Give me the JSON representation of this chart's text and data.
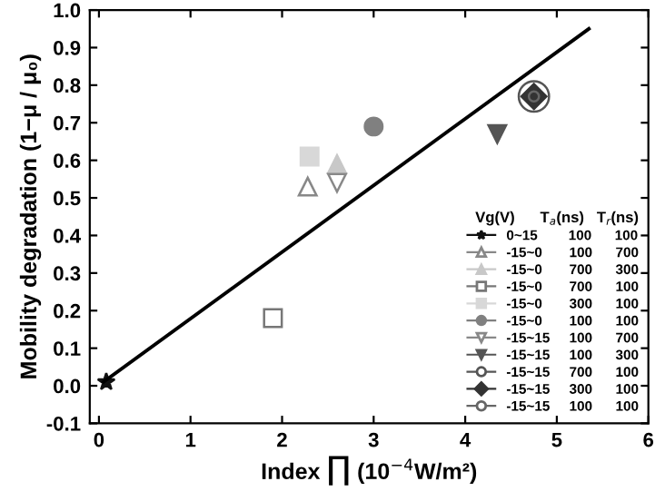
{
  "chart_data": {
    "type": "scatter",
    "xlabel": "Index ∏ (10$^{−4}$W/m²)",
    "ylabel": "Mobility degradation (1−μ / μ₀)",
    "legend_title": "Vg(V)      T$_{a}$(ns)   T$_{r}$(ns)",
    "legend": "bottom right",
    "grid": false,
    "xlim": [
      -0.1,
      6
    ],
    "xticks": [
      0,
      1,
      2,
      3,
      4,
      5,
      6
    ],
    "ylim": [
      -0.1,
      1.0
    ],
    "yticks": [
      -0.1,
      {
        "value": 0,
        "label": "0.0"
      },
      0.1,
      0.2,
      0.3,
      0.4,
      0.5,
      0.6,
      0.7,
      0.8,
      0.9,
      {
        "value": 1.0,
        "label": "1.0"
      }
    ],
    "series": [
      {
        "name": "0~15        100      100",
        "color": "#111111",
        "marker": "star",
        "x": [
          0.08
        ],
        "values": [
          0.01
        ]
      },
      {
        "name": "-15~0       100      700",
        "color": "#888888",
        "marker": "triangle",
        "x": [
          2.28
        ],
        "values": [
          0.53
        ]
      },
      {
        "name": "-15~0       700      300",
        "color": "#c8c8c8",
        "marker": "triangle",
        "x": [
          2.6
        ],
        "values": [
          0.59
        ]
      },
      {
        "name": "-15~0       700      100",
        "color": "#777777",
        "marker": "square",
        "x": [
          1.9
        ],
        "values": [
          0.18
        ]
      },
      {
        "name": "-15~0       300      100",
        "color": "#d8d8d8",
        "marker": "square",
        "x": [
          2.3
        ],
        "values": [
          0.61
        ]
      },
      {
        "name": "-15~0       100      100",
        "color": "#808080",
        "marker": "circle",
        "x": [
          3.0
        ],
        "values": [
          0.69
        ]
      },
      {
        "name": "-15~15     100      700",
        "color": "#888888",
        "marker": "triangle_down",
        "x": [
          2.6
        ],
        "values": [
          0.54
        ]
      },
      {
        "name": "-15~15     100      300",
        "color": "#555555",
        "marker": "triangle_down",
        "x": [
          4.35
        ],
        "values": [
          0.67
        ]
      },
      {
        "name": "-15~15     700      100",
        "color": "#555555",
        "marker": "circle",
        "x": [
          4.75
        ],
        "values": [
          0.77
        ]
      },
      {
        "name": "-15~15     300      100",
        "color": "#333333",
        "marker": "diamond",
        "x": [
          4.75
        ],
        "values": [
          0.77
        ]
      },
      {
        "name": "-15~15     100      100",
        "color": "#666666",
        "marker": "circle",
        "x": [
          4.75
        ],
        "values": [
          0.77
        ]
      },
      {
        "type": "line",
        "color": "#000000",
        "marker": "none",
        "x": [
          0.05,
          5.35
        ],
        "values": [
          0.01,
          0.95
        ]
      }
    ]
  }
}
